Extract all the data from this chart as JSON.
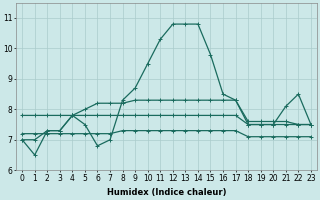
{
  "xlabel": "Humidex (Indice chaleur)",
  "ylabel": "",
  "background_color": "#cce8e8",
  "line_color": "#1a6b5e",
  "grid_color": "#aacccc",
  "xlim": [
    -0.5,
    23.5
  ],
  "ylim": [
    6,
    11.5
  ],
  "yticks": [
    6,
    7,
    8,
    9,
    10,
    11
  ],
  "xticks": [
    0,
    1,
    2,
    3,
    4,
    5,
    6,
    7,
    8,
    9,
    10,
    11,
    12,
    13,
    14,
    15,
    16,
    17,
    18,
    19,
    20,
    21,
    22,
    23
  ],
  "lines": [
    {
      "x": [
        0,
        1,
        2,
        3,
        4,
        5,
        6,
        7,
        8,
        9,
        10,
        11,
        12,
        13,
        14,
        15,
        16,
        17,
        18,
        19,
        20,
        21,
        22,
        23
      ],
      "y": [
        7.0,
        6.5,
        7.3,
        7.3,
        7.8,
        7.5,
        6.8,
        7.0,
        8.3,
        8.7,
        9.5,
        10.3,
        10.8,
        10.8,
        10.8,
        9.8,
        8.5,
        8.3,
        7.5,
        7.5,
        7.5,
        8.1,
        8.5,
        7.5
      ]
    },
    {
      "x": [
        0,
        1,
        2,
        3,
        4,
        5,
        6,
        7,
        8,
        9,
        10,
        11,
        12,
        13,
        14,
        15,
        16,
        17,
        18,
        19,
        20,
        21,
        22,
        23
      ],
      "y": [
        7.8,
        7.8,
        7.8,
        7.8,
        7.8,
        7.8,
        7.8,
        7.8,
        7.8,
        7.8,
        7.8,
        7.8,
        7.8,
        7.8,
        7.8,
        7.8,
        7.8,
        7.8,
        7.5,
        7.5,
        7.5,
        7.5,
        7.5,
        7.5
      ]
    },
    {
      "x": [
        0,
        1,
        2,
        3,
        4,
        5,
        6,
        7,
        8,
        9,
        10,
        11,
        12,
        13,
        14,
        15,
        16,
        17,
        18,
        19,
        20,
        21,
        22,
        23
      ],
      "y": [
        7.2,
        7.2,
        7.2,
        7.2,
        7.2,
        7.2,
        7.2,
        7.2,
        7.3,
        7.3,
        7.3,
        7.3,
        7.3,
        7.3,
        7.3,
        7.3,
        7.3,
        7.3,
        7.1,
        7.1,
        7.1,
        7.1,
        7.1,
        7.1
      ]
    },
    {
      "x": [
        0,
        1,
        2,
        3,
        4,
        5,
        6,
        7,
        8,
        9,
        10,
        11,
        12,
        13,
        14,
        15,
        16,
        17,
        18,
        19,
        20,
        21,
        22,
        23
      ],
      "y": [
        7.0,
        7.0,
        7.3,
        7.3,
        7.8,
        8.0,
        8.2,
        8.2,
        8.2,
        8.3,
        8.3,
        8.3,
        8.3,
        8.3,
        8.3,
        8.3,
        8.3,
        8.3,
        7.6,
        7.6,
        7.6,
        7.6,
        7.5,
        7.5
      ]
    }
  ],
  "marker": "+",
  "markersize": 3,
  "linewidth": 0.9,
  "axis_fontsize": 6,
  "tick_fontsize": 5.5
}
